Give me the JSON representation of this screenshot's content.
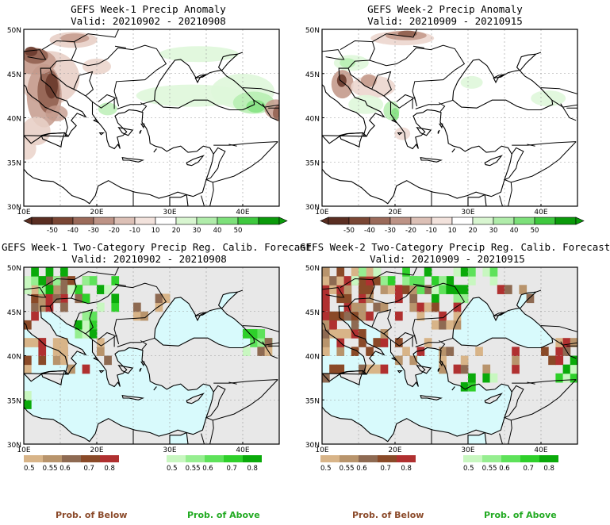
{
  "panels": [
    {
      "title": "GEFS Week-1 Precip Anomaly",
      "valid": "Valid: 20210902 - 20210908"
    },
    {
      "title": "GEFS Week-2 Precip Anomaly",
      "valid": "Valid: 20210909 - 20210915"
    },
    {
      "title": "GEFS Week-1 Two-Category Precip Reg. Calib. Forecast",
      "valid": "Valid: 20210902 - 20210908"
    },
    {
      "title": "GEFS Week-2 Two-Category Precip Reg. Calib. Forecast",
      "valid": "Valid: 20210909 - 20210915"
    }
  ],
  "axes": {
    "lat_labels": [
      "50N",
      "45N",
      "40N",
      "35N",
      "30N"
    ],
    "lon_labels": [
      "10E",
      "20E",
      "30E",
      "40E"
    ]
  },
  "anomaly_colorbar": {
    "labels": [
      "-50",
      "-40",
      "-30",
      "-20",
      "-10",
      "10",
      "20",
      "30",
      "40",
      "50"
    ],
    "colors": [
      "#5a2e22",
      "#7a4634",
      "#9b6a5a",
      "#bd9386",
      "#dcc0b6",
      "#f2e2dc",
      "#ffffff",
      "#d8f5d0",
      "#b0ecaa",
      "#7de07a",
      "#3ec83e",
      "#0a9a0a"
    ]
  },
  "below_colorbar": {
    "labels": [
      "0.5",
      "0.55",
      "0.6",
      "0.7",
      "0.8"
    ],
    "colors": [
      "#d8b488",
      "#b8946c",
      "#8e6a52",
      "#8a4a28",
      "#b03030"
    ]
  },
  "above_colorbar": {
    "labels": [
      "0.5",
      "0.55",
      "0.6",
      "0.7",
      "0.8"
    ],
    "colors": [
      "#c8f7c0",
      "#96ee90",
      "#5ee25a",
      "#2ed02a",
      "#0aaa0a"
    ]
  },
  "prob_labels": {
    "below": "Prob. of Below",
    "above": "Prob. of Above"
  },
  "colors": {
    "sea_cat": "#d8fafc",
    "land_cat": "#e8e8e8",
    "below": "#a0704c",
    "above": "#3ed83e",
    "below_text": "#8b4a2a",
    "above_text": "#22aa22"
  }
}
